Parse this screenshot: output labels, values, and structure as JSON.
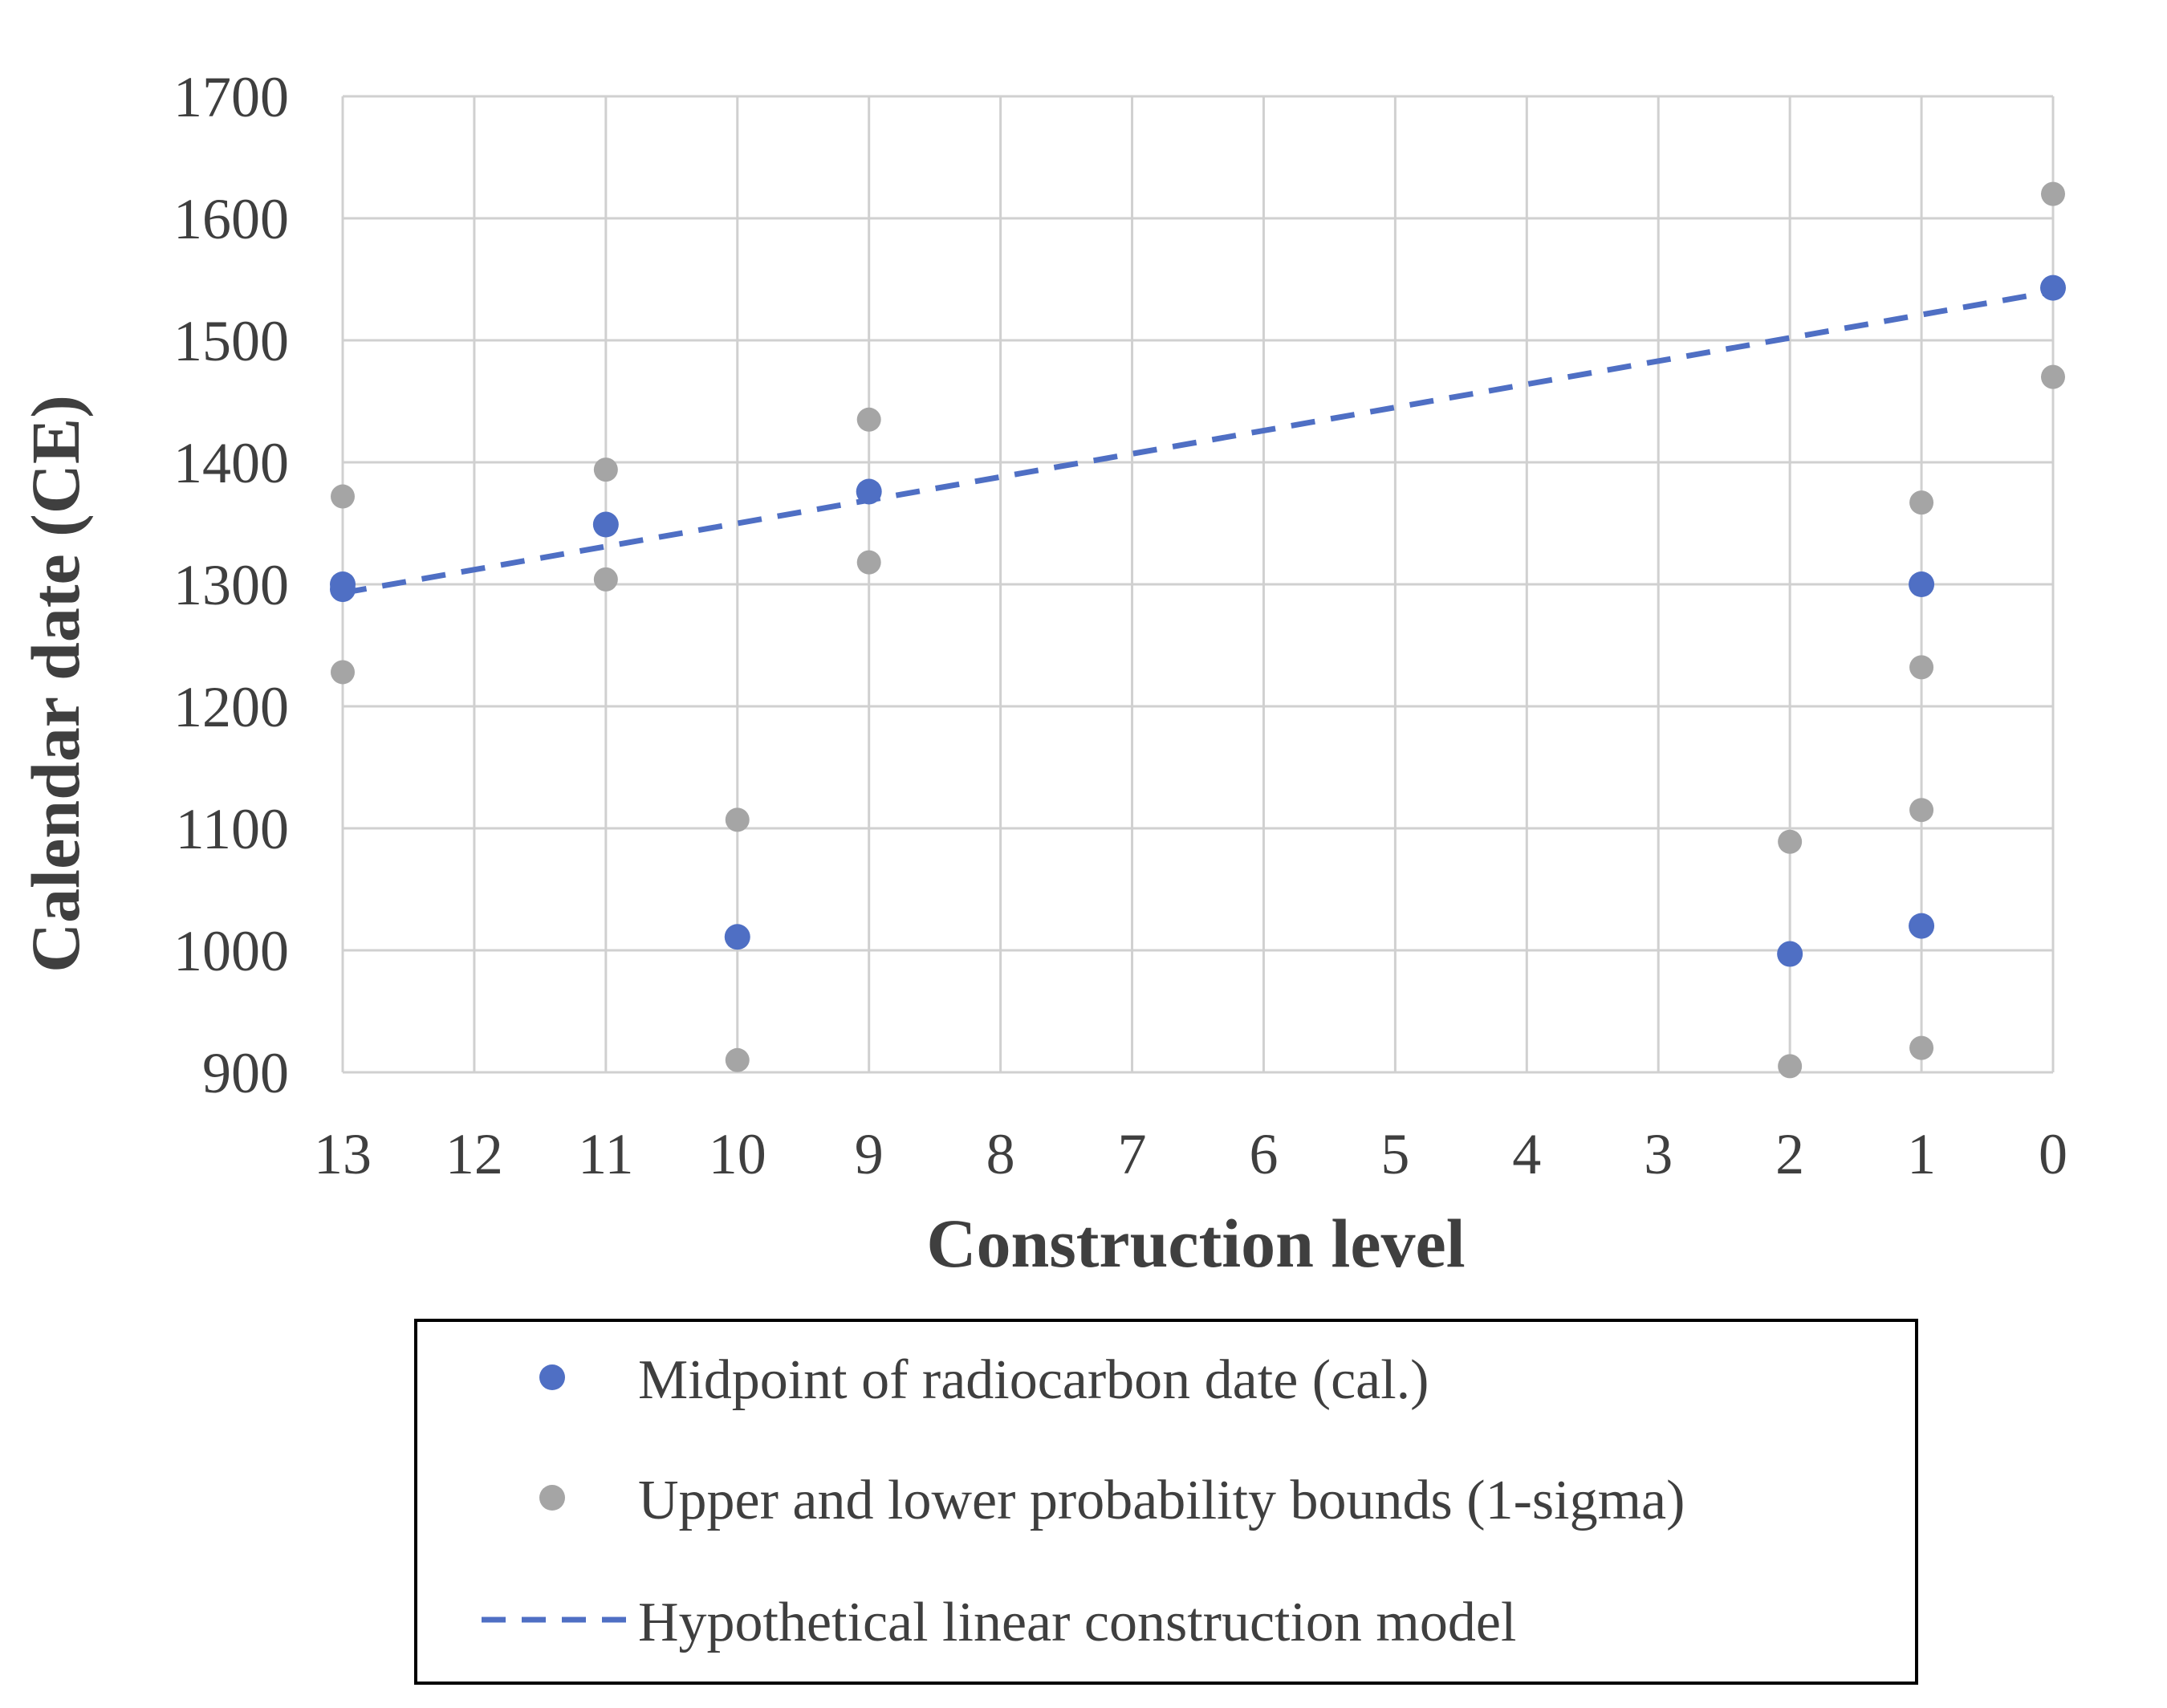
{
  "chart_data": {
    "type": "scatter",
    "title": "",
    "xlabel": "Construction level",
    "ylabel": "Calendar date (CE)",
    "xlim": [
      13,
      0
    ],
    "x_reversed": true,
    "ylim": [
      900,
      1700
    ],
    "x_ticks": [
      13,
      12,
      11,
      10,
      9,
      8,
      7,
      6,
      5,
      4,
      3,
      2,
      1,
      0
    ],
    "y_ticks": [
      900,
      1000,
      1100,
      1200,
      1300,
      1400,
      1500,
      1600,
      1700
    ],
    "grid": true,
    "legend_position": "bottom",
    "colors": {
      "midpoint": "#4f6fc4",
      "bounds": "#a5a5a5",
      "model": "#4f6fc4",
      "grid": "#d0d0d0",
      "axis_text": "#3f3f3f"
    },
    "series": [
      {
        "name": "Midpoint of radiocarbon date (cal.)",
        "kind": "points",
        "points": [
          {
            "x": 13,
            "y": 1300
          },
          {
            "x": 13,
            "y": 1296
          },
          {
            "x": 11,
            "y": 1349
          },
          {
            "x": 10,
            "y": 1011
          },
          {
            "x": 9,
            "y": 1376
          },
          {
            "x": 2,
            "y": 997
          },
          {
            "x": 1,
            "y": 1300
          },
          {
            "x": 1,
            "y": 1020
          },
          {
            "x": 0,
            "y": 1543
          }
        ]
      },
      {
        "name": "Upper and lower probability bounds (1-sigma)",
        "kind": "points",
        "points": [
          {
            "x": 13,
            "y": 1372
          },
          {
            "x": 13,
            "y": 1228
          },
          {
            "x": 11,
            "y": 1394
          },
          {
            "x": 11,
            "y": 1304
          },
          {
            "x": 10,
            "y": 1107
          },
          {
            "x": 10,
            "y": 910
          },
          {
            "x": 9,
            "y": 1435
          },
          {
            "x": 9,
            "y": 1318
          },
          {
            "x": 2,
            "y": 1089
          },
          {
            "x": 2,
            "y": 905
          },
          {
            "x": 1,
            "y": 1367
          },
          {
            "x": 1,
            "y": 1232
          },
          {
            "x": 1,
            "y": 1115
          },
          {
            "x": 1,
            "y": 920
          },
          {
            "x": 0,
            "y": 1620
          },
          {
            "x": 0,
            "y": 1470
          }
        ]
      },
      {
        "name": "Hypothetical linear construction model",
        "kind": "line",
        "dashed": true,
        "points": [
          {
            "x": 13,
            "y": 1293
          },
          {
            "x": 0,
            "y": 1540
          }
        ]
      }
    ]
  }
}
